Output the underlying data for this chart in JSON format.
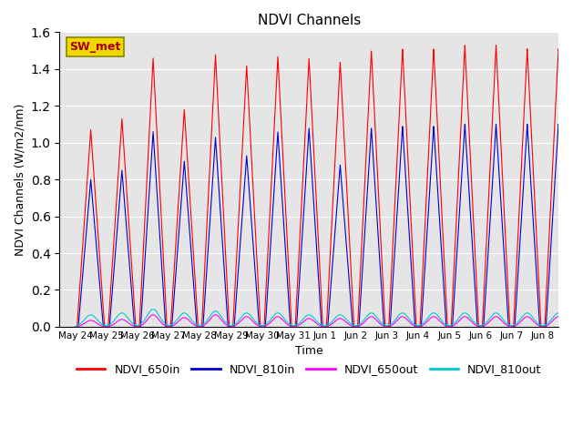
{
  "title": "NDVI Channels",
  "ylabel": "NDVI Channels (W/m2/nm)",
  "xlabel": "Time",
  "ylim": [
    0,
    1.6
  ],
  "yticks": [
    0.0,
    0.2,
    0.4,
    0.6,
    0.8,
    1.0,
    1.2,
    1.4,
    1.6
  ],
  "background_color": "#e5e5e5",
  "legend_label": "SW_met",
  "series": {
    "NDVI_650in": {
      "color": "#ff0000",
      "label": "NDVI_650in"
    },
    "NDVI_810in": {
      "color": "#0000cc",
      "label": "NDVI_810in"
    },
    "NDVI_650out": {
      "color": "#ff00ff",
      "label": "NDVI_650out"
    },
    "NDVI_810out": {
      "color": "#00cccc",
      "label": "NDVI_810out"
    }
  },
  "num_days": 16,
  "spike_650in_peaks": [
    1.07,
    1.13,
    1.46,
    1.18,
    1.48,
    1.42,
    1.47,
    1.46,
    1.44,
    1.5,
    1.51,
    1.51,
    1.53,
    1.53,
    1.51,
    1.51
  ],
  "spike_810in_peaks": [
    0.8,
    0.85,
    1.06,
    0.9,
    1.03,
    0.93,
    1.06,
    1.08,
    0.88,
    1.08,
    1.09,
    1.09,
    1.1,
    1.1,
    1.1,
    1.1
  ],
  "spike_650out_peaks": [
    0.035,
    0.04,
    0.065,
    0.05,
    0.065,
    0.055,
    0.055,
    0.045,
    0.045,
    0.055,
    0.055,
    0.055,
    0.055,
    0.055,
    0.055,
    0.055
  ],
  "spike_810out_peaks": [
    0.065,
    0.075,
    0.095,
    0.075,
    0.085,
    0.075,
    0.075,
    0.065,
    0.065,
    0.075,
    0.075,
    0.075,
    0.075,
    0.075,
    0.075,
    0.075
  ],
  "xtick_labels": [
    "May 24",
    "May 25",
    "May 26",
    "May 27",
    "May 28",
    "May 29",
    "May 30",
    "May 31",
    "Jun 1",
    "Jun 2",
    "Jun 3",
    "Jun 4",
    "Jun 5",
    "Jun 6",
    "Jun 7",
    "Jun 8"
  ],
  "xtick_positions": [
    0,
    1,
    2,
    3,
    4,
    5,
    6,
    7,
    8,
    9,
    10,
    11,
    12,
    13,
    14,
    15
  ]
}
